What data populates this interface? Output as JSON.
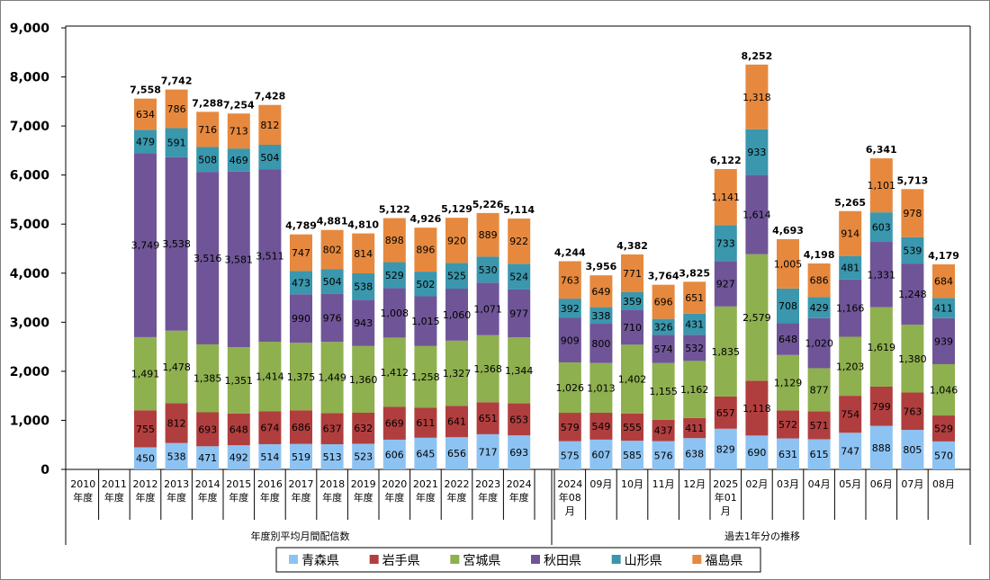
{
  "chart_data": {
    "type": "bar",
    "stacked": true,
    "ylim": [
      0,
      9000
    ],
    "yticks": [
      "0",
      "1,000",
      "2,000",
      "3,000",
      "4,000",
      "5,000",
      "6,000",
      "7,000",
      "8,000",
      "9,000"
    ],
    "grid": false,
    "legend_position": "bottom",
    "groups": [
      {
        "label": "年度別平均月間配信数",
        "first": 0,
        "last": 14
      },
      {
        "label": "過去1年分の推移",
        "first": 15,
        "last": 27
      }
    ],
    "categories": [
      [
        "2010",
        "年度"
      ],
      [
        "2011",
        "年度"
      ],
      [
        "2012",
        "年度"
      ],
      [
        "2013",
        "年度"
      ],
      [
        "2014",
        "年度"
      ],
      [
        "2015",
        "年度"
      ],
      [
        "2016",
        "年度"
      ],
      [
        "2017",
        "年度"
      ],
      [
        "2018",
        "年度"
      ],
      [
        "2019",
        "年度"
      ],
      [
        "2020",
        "年度"
      ],
      [
        "2021",
        "年度"
      ],
      [
        "2022",
        "年度"
      ],
      [
        "2023",
        "年度"
      ],
      [
        "2024",
        "年度"
      ],
      [
        "2024",
        "年08",
        "月"
      ],
      [
        "09月"
      ],
      [
        "10月"
      ],
      [
        "11月"
      ],
      [
        "12月"
      ],
      [
        "2025",
        "年01",
        "月"
      ],
      [
        "02月"
      ],
      [
        "03月"
      ],
      [
        "04月"
      ],
      [
        "05月"
      ],
      [
        "06月"
      ],
      [
        "07月"
      ],
      [
        "08月"
      ]
    ],
    "totals": [
      "",
      "",
      "7,558",
      "7,742",
      "7,288",
      "7,254",
      "7,428",
      "4,789",
      "4,881",
      "4,810",
      "5,122",
      "4,926",
      "5,129",
      "5,226",
      "5,114",
      "4,244",
      "3,956",
      "4,382",
      "3,764",
      "3,825",
      "6,122",
      "8,252",
      "4,693",
      "4,198",
      "5,265",
      "6,341",
      "5,713",
      "4,179"
    ],
    "series": [
      {
        "name": "青森県",
        "color": "#8dc3f2",
        "values": [
          null,
          null,
          450,
          538,
          471,
          492,
          514,
          519,
          513,
          523,
          606,
          645,
          656,
          717,
          693,
          575,
          607,
          585,
          576,
          638,
          829,
          690,
          631,
          615,
          747,
          888,
          805,
          570
        ]
      },
      {
        "name": "岩手県",
        "color": "#b13e3e",
        "values": [
          null,
          null,
          755,
          812,
          693,
          648,
          674,
          686,
          637,
          632,
          669,
          611,
          641,
          651,
          653,
          579,
          549,
          555,
          437,
          411,
          657,
          1118,
          572,
          571,
          754,
          799,
          763,
          529
        ]
      },
      {
        "name": "宮城県",
        "color": "#8eb04e",
        "values": [
          null,
          null,
          1491,
          1478,
          1385,
          1351,
          1414,
          1375,
          1449,
          1360,
          1412,
          1258,
          1327,
          1368,
          1344,
          1026,
          1013,
          1402,
          1155,
          1162,
          1835,
          2579,
          1129,
          877,
          1203,
          1619,
          1380,
          1046
        ]
      },
      {
        "name": "秋田県",
        "color": "#6f5597",
        "values": [
          null,
          null,
          3749,
          3538,
          3516,
          3581,
          3511,
          990,
          976,
          943,
          1008,
          1015,
          1060,
          1071,
          977,
          909,
          800,
          710,
          574,
          532,
          927,
          1614,
          648,
          1020,
          1166,
          1331,
          1248,
          939
        ]
      },
      {
        "name": "山形県",
        "color": "#3a97ad",
        "values": [
          null,
          null,
          479,
          591,
          508,
          469,
          504,
          473,
          504,
          538,
          529,
          502,
          525,
          530,
          524,
          392,
          338,
          359,
          326,
          431,
          733,
          933,
          708,
          429,
          481,
          603,
          539,
          411
        ]
      },
      {
        "name": "福島県",
        "color": "#e6893e",
        "values": [
          null,
          null,
          634,
          786,
          716,
          713,
          812,
          747,
          802,
          814,
          898,
          896,
          920,
          889,
          922,
          763,
          649,
          771,
          696,
          651,
          1141,
          1318,
          1005,
          686,
          914,
          1101,
          978,
          684
        ]
      }
    ]
  }
}
